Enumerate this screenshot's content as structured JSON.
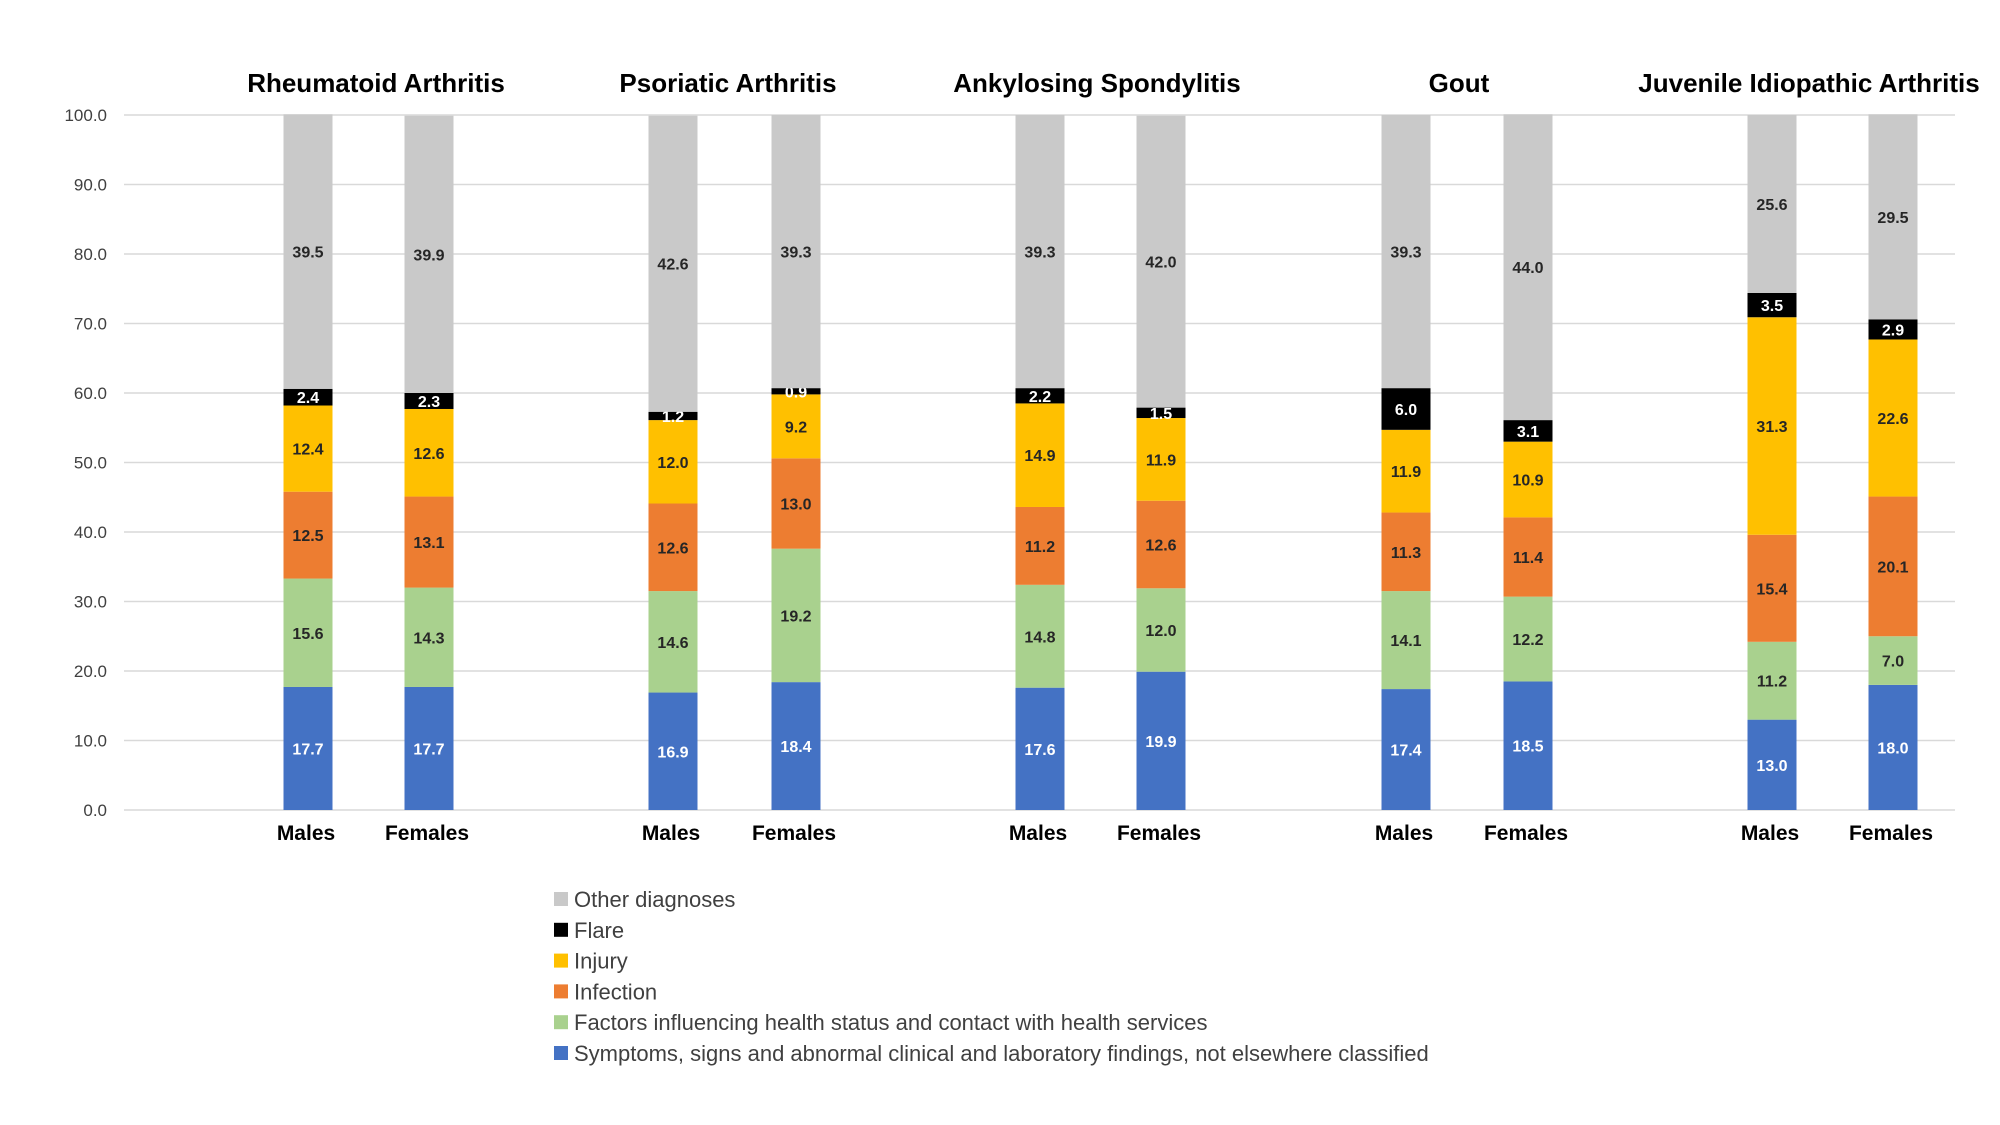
{
  "chart_data": {
    "type": "bar",
    "stacked": true,
    "ylim": [
      0,
      100
    ],
    "yticks": [
      "0.0",
      "10.0",
      "20.0",
      "30.0",
      "40.0",
      "50.0",
      "60.0",
      "70.0",
      "80.0",
      "90.0",
      "100.0"
    ],
    "grid": true,
    "legend_position": "bottom",
    "series": [
      {
        "name": "Symptoms, signs and abnormal clinical and laboratory findings, not elsewhere classified",
        "color": "#4472C4",
        "label_color": "#ffffff"
      },
      {
        "name": "Factors influencing health status and contact with health services",
        "color": "#A9D18E",
        "label_color": "#262626"
      },
      {
        "name": "Infection",
        "color": "#ED7D31",
        "label_color": "#262626"
      },
      {
        "name": "Injury",
        "color": "#FFC000",
        "label_color": "#262626"
      },
      {
        "name": "Flare",
        "color": "#000000",
        "label_color": "#ffffff"
      },
      {
        "name": "Other diagnoses",
        "color": "#C9C9C9",
        "label_color": "#262626"
      }
    ],
    "groups": [
      {
        "title": "Rheumatoid Arthritis",
        "bars": [
          {
            "label": "Males",
            "values": [
              17.7,
              15.6,
              12.5,
              12.4,
              2.4,
              39.5
            ]
          },
          {
            "label": "Females",
            "values": [
              17.7,
              14.3,
              13.1,
              12.6,
              2.3,
              39.9
            ]
          }
        ]
      },
      {
        "title": "Psoriatic Arthritis",
        "bars": [
          {
            "label": "Males",
            "values": [
              16.9,
              14.6,
              12.6,
              12.0,
              1.2,
              42.6
            ]
          },
          {
            "label": "Females",
            "values": [
              18.4,
              19.2,
              13.0,
              9.2,
              0.9,
              39.3
            ]
          }
        ]
      },
      {
        "title": "Ankylosing Spondylitis",
        "bars": [
          {
            "label": "Males",
            "values": [
              17.6,
              14.8,
              11.2,
              14.9,
              2.2,
              39.3
            ]
          },
          {
            "label": "Females",
            "values": [
              19.9,
              12.0,
              12.6,
              11.9,
              1.5,
              42.0
            ]
          }
        ]
      },
      {
        "title": "Gout",
        "bars": [
          {
            "label": "Males",
            "values": [
              17.4,
              14.1,
              11.3,
              11.9,
              6.0,
              39.3
            ]
          },
          {
            "label": "Females",
            "values": [
              18.5,
              12.2,
              11.4,
              10.9,
              3.1,
              44.0
            ]
          }
        ]
      },
      {
        "title": "Juvenile Idiopathic Arthritis",
        "bars": [
          {
            "label": "Males",
            "values": [
              13.0,
              11.2,
              15.4,
              31.3,
              3.5,
              25.6
            ]
          },
          {
            "label": "Females",
            "values": [
              18.0,
              7.0,
              20.1,
              22.6,
              2.9,
              29.5
            ]
          }
        ]
      }
    ]
  }
}
